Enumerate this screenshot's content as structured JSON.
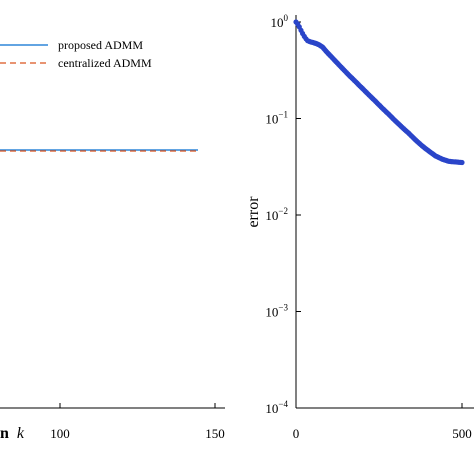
{
  "chart_data": [
    {
      "type": "line",
      "xlabel_visible": "n k",
      "x_ticks": [
        100,
        150
      ],
      "series": [
        {
          "name": "proposed ADMM",
          "color": "#2f86d8",
          "style": "solid"
        },
        {
          "name": "centralized ADMM",
          "color": "#d9531e",
          "style": "dashed"
        }
      ],
      "note_values": {
        "x": [
          0,
          141
        ],
        "y_level": "constant"
      },
      "grid": false
    },
    {
      "type": "line",
      "ylabel": "error",
      "yscale": "log",
      "ylim": [
        0.0001,
        1
      ],
      "y_ticks": [
        "10^0",
        "10^-1",
        "10^-2",
        "10^-3",
        "10^-4"
      ],
      "x_ticks": [
        0,
        500
      ],
      "series": [
        {
          "color": "#2a45c9",
          "marker": "circle",
          "x": [
            0,
            5,
            10,
            15,
            20,
            25,
            30,
            35,
            40,
            45,
            50,
            60,
            70,
            80,
            90,
            100,
            120,
            140,
            160,
            180,
            200,
            220,
            240,
            260,
            280,
            300,
            320,
            340,
            360,
            380,
            400,
            420,
            440,
            460,
            480,
            500
          ],
          "y": [
            1.0,
            0.95,
            0.89,
            0.82,
            0.76,
            0.71,
            0.67,
            0.64,
            0.63,
            0.62,
            0.615,
            0.6,
            0.58,
            0.55,
            0.5,
            0.46,
            0.39,
            0.33,
            0.28,
            0.24,
            0.205,
            0.175,
            0.15,
            0.128,
            0.11,
            0.094,
            0.081,
            0.07,
            0.06,
            0.052,
            0.046,
            0.041,
            0.038,
            0.036,
            0.0355,
            0.035
          ]
        }
      ],
      "grid": false
    }
  ],
  "legend": {
    "entries": [
      "proposed ADMM",
      "centralized ADMM"
    ]
  },
  "left_axis": {
    "tick_100": "100",
    "tick_150": "150",
    "xlabel_fragment_bold": "n",
    "xlabel_fragment_italic": "k"
  },
  "right_axis": {
    "ylabel": "error",
    "tick_x0": "0",
    "tick_x500": "500",
    "tick_base": "10",
    "exp_0": "0",
    "exp_1": "−1",
    "exp_2": "−2",
    "exp_3": "−3",
    "exp_4": "−4"
  }
}
